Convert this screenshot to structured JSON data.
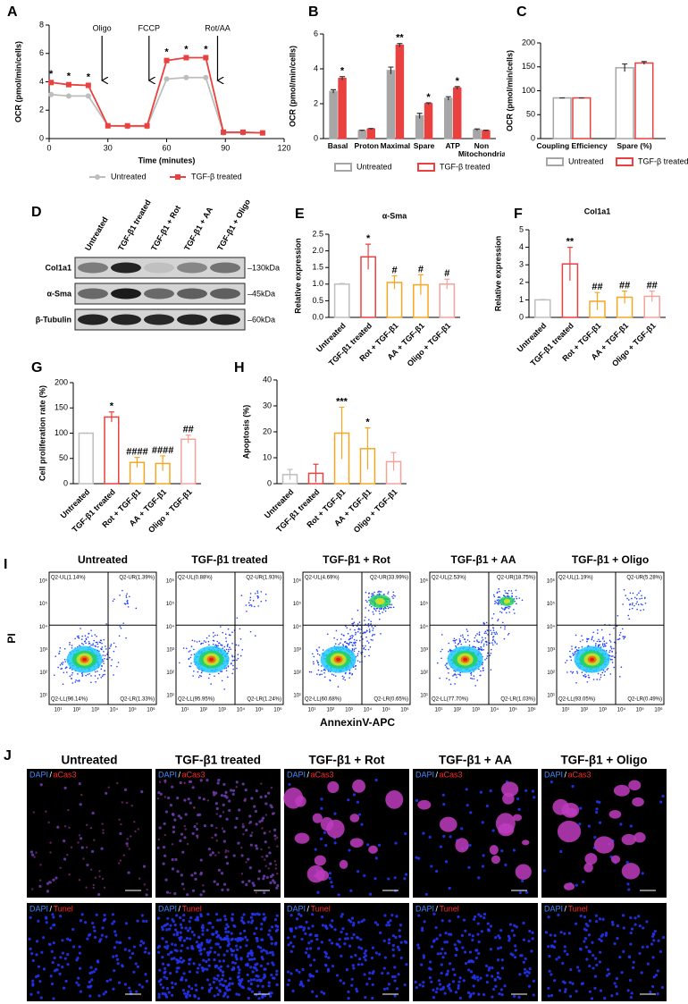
{
  "chart_data": [
    {
      "panel": "A",
      "type": "line",
      "x_label": "Time (minutes)",
      "y_label": "OCR (pmol/min/cells)",
      "x": [
        1,
        10,
        20,
        30,
        40,
        50,
        60,
        70,
        80,
        89,
        99,
        109
      ],
      "xlim": [
        0,
        120
      ],
      "xticks": [
        0,
        30,
        60,
        90,
        120
      ],
      "ylim": [
        0,
        8
      ],
      "yticks": [
        0,
        2,
        4,
        6,
        8
      ],
      "series": [
        {
          "name": "Untreated",
          "color": "#bdbdbd",
          "marker": "circle",
          "values": [
            3.1,
            3.0,
            3.0,
            0.9,
            0.85,
            0.85,
            4.2,
            4.3,
            4.3,
            0.4,
            0.4,
            0.4
          ]
        },
        {
          "name": "TGF-β treated",
          "color": "#e8413f",
          "marker": "square",
          "values": [
            3.95,
            3.8,
            3.75,
            0.9,
            0.9,
            0.9,
            5.5,
            5.7,
            5.7,
            0.45,
            0.45,
            0.4
          ],
          "labels": [
            "*",
            "*",
            "*",
            null,
            null,
            null,
            "*",
            "*",
            "*",
            null,
            null,
            null
          ]
        }
      ],
      "injections": [
        {
          "label": "Oligo",
          "x": 27
        },
        {
          "label": "FCCP",
          "x": 51
        },
        {
          "label": "Rot/AA",
          "x": 86
        }
      ]
    },
    {
      "panel": "B",
      "type": "bar",
      "y_label": "OCR (pmol/min/cells)",
      "categories": [
        "Basal",
        "Proton",
        "Maximal",
        "Spare",
        "ATP",
        "Non Mitochondrial"
      ],
      "ylim": [
        0,
        6
      ],
      "yticks": [
        0,
        2,
        4,
        6
      ],
      "filled": true,
      "series": [
        {
          "name": "Untreated",
          "color": "#a6a6a6",
          "values": [
            2.7,
            0.45,
            3.9,
            1.3,
            2.3,
            0.5
          ],
          "errors": [
            0.1,
            0.03,
            0.2,
            0.15,
            0.1,
            0.05
          ]
        },
        {
          "name": "TGF-β treated",
          "color": "#e8413f",
          "values": [
            3.45,
            0.55,
            5.35,
            2.0,
            2.9,
            0.45
          ],
          "errors": [
            0.1,
            0.03,
            0.1,
            0.05,
            0.08,
            0.03
          ]
        }
      ],
      "significance": [
        "*",
        null,
        "**",
        "*",
        "*",
        null
      ]
    },
    {
      "panel": "C",
      "type": "bar",
      "y_label": "OCR (pmol/min/cells)",
      "categories": [
        "Coupling Efficiency",
        "Spare (%)"
      ],
      "ylim": [
        0,
        200
      ],
      "yticks": [
        0,
        50,
        100,
        150,
        200
      ],
      "filled": false,
      "series": [
        {
          "name": "Untreated",
          "color": "#a6a6a6",
          "values": [
            85,
            148
          ],
          "errors": [
            0,
            8
          ]
        },
        {
          "name": "TGF-β treated",
          "color": "#e8413f",
          "values": [
            85,
            158
          ],
          "errors": [
            0,
            3
          ]
        }
      ]
    },
    {
      "panel": "E",
      "type": "bar",
      "title": "α-Sma",
      "y_label": "Relative expression",
      "categories": [
        "Untreated",
        "TGF-β1 treated",
        "Rot + TGF-β1",
        "AA + TGF-β1",
        "Oligo + TGF-β1"
      ],
      "values": [
        1,
        1.82,
        1.05,
        0.98,
        1.0
      ],
      "errors": [
        0.02,
        0.38,
        0.2,
        0.3,
        0.15
      ],
      "colors": [
        "#bdbdbd",
        "#e8413f",
        "#f5a623",
        "#f5a623",
        "#f4a29a"
      ],
      "ylim": [
        0,
        2.5
      ],
      "yticks": [
        {
          "value": 0,
          "label": "0.0"
        },
        0.5,
        {
          "value": 1,
          "label": "1.0"
        },
        1.5,
        {
          "value": 2,
          "label": "2.0"
        },
        2.5
      ],
      "significance": [
        null,
        "*",
        "#",
        "#",
        "#"
      ]
    },
    {
      "panel": "F",
      "type": "bar",
      "title": "Col1a1",
      "y_label": "Relative expression",
      "categories": [
        "Untreated",
        "TGF-β1 treated",
        "Rot + TGF-β1",
        "AA + TGF-β1",
        "Oligo + TGF-β1"
      ],
      "values": [
        1,
        3.05,
        0.92,
        1.15,
        1.2
      ],
      "errors": [
        0.02,
        0.95,
        0.5,
        0.35,
        0.3
      ],
      "colors": [
        "#bdbdbd",
        "#e8413f",
        "#f5a623",
        "#f5a623",
        "#f4a29a"
      ],
      "ylim": [
        0,
        5
      ],
      "yticks": [
        0,
        1,
        2,
        3,
        4,
        5
      ],
      "significance": [
        null,
        "**",
        "##",
        "##",
        "##"
      ]
    },
    {
      "panel": "G",
      "type": "bar",
      "y_label": "Cell proliferation rate (%)",
      "categories": [
        "Untreated",
        "TGF-β1 treated",
        "Rot + TGF-β1",
        "AA + TGF-β1",
        "Oligo + TGF-β1"
      ],
      "values": [
        100,
        132,
        42,
        40,
        88
      ],
      "errors": [
        0,
        10,
        10,
        15,
        8
      ],
      "colors": [
        "#bdbdbd",
        "#e8413f",
        "#f5a623",
        "#f5a623",
        "#f4a29a"
      ],
      "ylim": [
        0,
        200
      ],
      "yticks": [
        0,
        50,
        100,
        150,
        200
      ],
      "significance": [
        null,
        "*",
        "####",
        "####",
        "##"
      ]
    },
    {
      "panel": "H",
      "type": "bar",
      "y_label": "Apoptosis (%)",
      "categories": [
        "Untreated",
        "TGF-β1 treated",
        "Rot + TGF-β1",
        "AA + TGF-β1",
        "Oligo + TGF-β1"
      ],
      "values": [
        3.5,
        4,
        19.5,
        13.5,
        8.5
      ],
      "errors": [
        2,
        3.5,
        10,
        8,
        3.5
      ],
      "colors": [
        "#bdbdbd",
        "#e8413f",
        "#f5a623",
        "#f5a623",
        "#f4a29a"
      ],
      "ylim": [
        0,
        40
      ],
      "yticks": [
        0,
        10,
        20,
        30,
        40
      ],
      "significance": [
        null,
        null,
        "***",
        "*",
        null
      ]
    }
  ],
  "western_blot": {
    "panel": "D",
    "lanes": [
      "Untreated",
      "TGF-β1 treated",
      "TGF-β1 + Rot",
      "TGF-β1 + AA",
      "TGF-β1 + Oligo"
    ],
    "rows": [
      {
        "protein": "Col1a1",
        "size": "–130kDa"
      },
      {
        "protein": "α-Sma",
        "size": "–45kDa"
      },
      {
        "protein": "β-Tubulin",
        "size": "–60kDa"
      }
    ]
  },
  "flow_cytometry": {
    "panel": "I",
    "x_label": "AnnexinV-APC",
    "y_label": "PI",
    "axis_ticks": [
      "10¹",
      "10²",
      "10³",
      "10⁴",
      "10⁵",
      "10⁶"
    ],
    "samples": [
      {
        "title": "Untreated",
        "quadrants": [
          "Q2-UL(1.14%)",
          "Q2-UR(1.39%)",
          "Q2-LL(96.14%)",
          "Q2-LR(1.33%)"
        ]
      },
      {
        "title": "TGF-β1 treated",
        "quadrants": [
          "Q2-UL(0.88%)",
          "Q2-UR(1.93%)",
          "Q2-LL(95.95%)",
          "Q2-LR(1.24%)"
        ]
      },
      {
        "title": "TGF-β1 + Rot",
        "quadrants": [
          "Q2-UL(4.69%)",
          "Q2-UR(33.99%)",
          "Q2-LL(60.68%)",
          "Q2-LR(0.65%)"
        ]
      },
      {
        "title": "TGF-β1 + AA",
        "quadrants": [
          "Q2-UL(2.53%)",
          "Q2-UR(18.75%)",
          "Q2-LL(77.70%)",
          "Q2-LR(1.03%)"
        ]
      },
      {
        "title": "TGF-β1 + Oligo",
        "quadrants": [
          "Q2-UL(1.19%)",
          "Q2-UR(5.28%)",
          "Q2-LL(93.05%)",
          "Q2-LR(0.49%)"
        ]
      }
    ]
  },
  "immunofluorescence": {
    "panel": "J",
    "titles": [
      "Untreated",
      "TGF-β1 treated",
      "TGF-β1 + Rot",
      "TGF-β1 + AA",
      "TGF-β1 + Oligo"
    ],
    "stains": [
      [
        "DAPI",
        "/",
        "aCas3"
      ],
      [
        "DAPI",
        "/",
        "Tunel"
      ]
    ]
  }
}
